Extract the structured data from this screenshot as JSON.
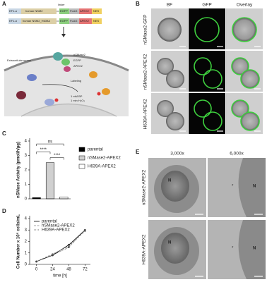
{
  "panel_labels": [
    "A",
    "B",
    "C",
    "D",
    "E"
  ],
  "panel_a": {
    "construct_1": [
      "EF1-α",
      "human NSM2",
      "EGFP",
      "FLAG",
      "APEX2",
      "NES"
    ],
    "construct_2": [
      "EF1-α",
      "human NSM2_H639A",
      "EGFP",
      "FLAG",
      "APEX2",
      "NES"
    ],
    "linker": "linker",
    "extracellular": "Extracellular space",
    "protein": [
      "nSMase2",
      "EGFP",
      "APEX2"
    ],
    "labeling": "Labeling",
    "conditions": [
      "1 mM BP",
      "1 min H₂O₂"
    ]
  },
  "panel_b": {
    "columns": [
      "BF",
      "GFP",
      "Overlay"
    ],
    "rows": [
      "nSMase2-GFP",
      "nSMase2-APEX2",
      "H639A-APEX2"
    ]
  },
  "panel_e": {
    "columns": [
      "3,000x",
      "6,000x"
    ],
    "rows": [
      "nSMase2-APEX2",
      "H639A-APEX2"
    ],
    "nucleus_label": "N"
  },
  "chart_data": [
    {
      "type": "bar",
      "y_label": "nSMase Activity (pmol/h/µg)",
      "series": [
        {
          "name": "parental",
          "color": "#000000",
          "values": [
            0.08
          ]
        },
        {
          "name": "nSMase2-APEX2",
          "color": "#d0d0d0",
          "values": [
            2.5
          ]
        },
        {
          "name": "H639A-APEX2",
          "color": "#ffffff",
          "values": [
            0.12
          ]
        }
      ],
      "ylim": [
        0,
        4
      ],
      "yticks": [
        0,
        1,
        2,
        3,
        4
      ],
      "annotations": [
        "ns",
        "****",
        "****"
      ]
    },
    {
      "type": "line",
      "x_label": "time [h]",
      "y_label": "Cell Number x 10⁵ cells/mL",
      "x": [
        0,
        24,
        48,
        72
      ],
      "series": [
        {
          "name": "parental",
          "color": "#000000",
          "values": [
            0.25,
            0.8,
            1.7,
            3.0
          ]
        },
        {
          "name": "nSMase2-APEX2",
          "color": "#888888",
          "values": [
            0.25,
            0.9,
            1.6,
            2.9
          ]
        },
        {
          "name": "H639A-APEX2",
          "color": "#444444",
          "values": [
            0.25,
            0.8,
            1.5,
            3.0
          ]
        }
      ],
      "xlim": [
        -10,
        80
      ],
      "xticks": [
        0,
        24,
        48,
        72
      ],
      "ylim": [
        0,
        4
      ],
      "yticks": [
        0,
        1,
        2,
        3,
        4
      ]
    }
  ]
}
